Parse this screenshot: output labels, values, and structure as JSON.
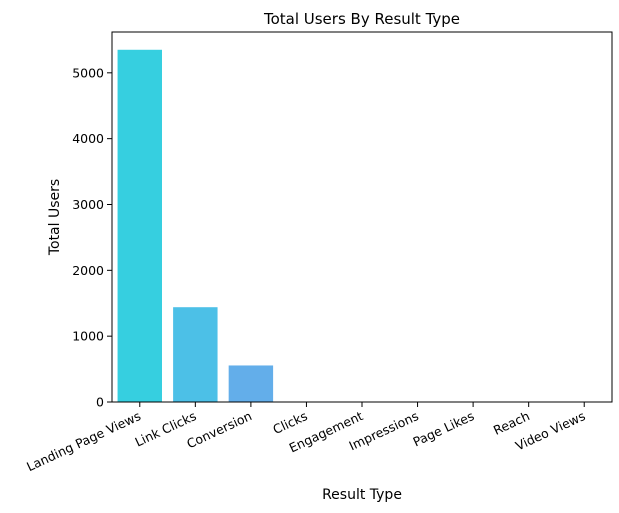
{
  "chart_data": {
    "type": "bar",
    "title": "Total Users By Result Type",
    "xlabel": "Result Type",
    "ylabel": "Total Users",
    "categories": [
      "Landing Page Views",
      "Link Clicks",
      "Conversion",
      "Clicks",
      "Engagement",
      "Impressions",
      "Page Likes",
      "Reach",
      "Video Views"
    ],
    "values": [
      5350,
      1440,
      555,
      0,
      0,
      0,
      0,
      0,
      0
    ],
    "colors": [
      "#36CFE0",
      "#4CC0E7",
      "#63AEEA",
      "#7A9CEB",
      "#8F8AEA",
      "#A478E7",
      "#B866E3",
      "#C856DC",
      "#D64AD3"
    ],
    "ylim": [
      0,
      5620
    ],
    "yticks": [
      0,
      1000,
      2000,
      3000,
      4000,
      5000
    ],
    "grid": false,
    "legend": "none"
  }
}
